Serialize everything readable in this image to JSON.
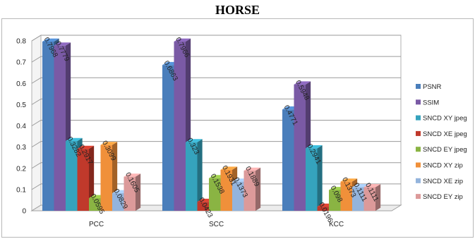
{
  "chart_data": {
    "type": "bar",
    "title": "HORSE",
    "categories": [
      "PCC",
      "SCC",
      "KCC"
    ],
    "ylim": [
      0,
      0.8
    ],
    "yticks": [
      "0",
      "0.1",
      "0.2",
      "0.3",
      "0.4",
      "0.5",
      "0.6",
      "0.7",
      "0.8"
    ],
    "grid": true,
    "legend_position": "right",
    "series": [
      {
        "name": "PSNR",
        "color": "#4a7ebb",
        "values": [
          0.7968,
          0.6863,
          0.4771
        ],
        "labels": [
          "0.7968",
          "0.6863",
          "0.4771"
        ]
      },
      {
        "name": "SSIM",
        "color": "#7a5aa5",
        "values": [
          0.7779,
          0.7966,
          0.5948
        ],
        "labels": [
          "0.7779",
          "0.7966",
          "0.5948"
        ]
      },
      {
        "name": "SNCD XY jpeg",
        "color": "#35a3bd",
        "values": [
          0.3282,
          0.323,
          0.2941
        ],
        "labels": [
          "0.3282",
          "0.323",
          "0.2941"
        ]
      },
      {
        "name": "SNCD XE jpeg",
        "color": "#c0392b",
        "values": [
          0.2917,
          0.0423,
          0.0196
        ],
        "labels": [
          "0.2917",
          "0.0423",
          "0.0196"
        ]
      },
      {
        "name": "SNCD EY jpeg",
        "color": "#8ab443",
        "values": [
          0.0595,
          0.1538,
          0.098
        ],
        "labels": [
          "0.0595",
          "0.1538",
          "0.098"
        ]
      },
      {
        "name": "SNCD XY zip",
        "color": "#f0903a",
        "values": [
          0.3099,
          0.1931,
          0.1373
        ],
        "labels": [
          "0.3099",
          "0.1931",
          "0.1373"
        ]
      },
      {
        "name": "SNCD XE zip",
        "color": "#94b4dc",
        "values": [
          0.0829,
          0.1373,
          0.1111
        ],
        "labels": [
          "0.0829",
          "0.1373",
          "0.1111"
        ]
      },
      {
        "name": "SNCD EY zip",
        "color": "#dc9a9a",
        "values": [
          0.1605,
          0.1889,
          0.1111
        ],
        "labels": [
          "0.1605",
          "0.1889",
          "0.1111"
        ]
      }
    ]
  }
}
